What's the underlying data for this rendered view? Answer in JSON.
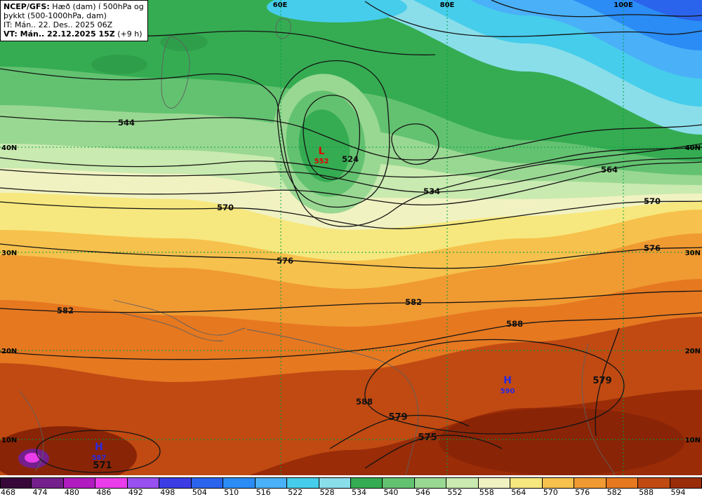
{
  "title_box": {
    "product_bold": "NCEP/GFS:",
    "product_rest": " Hæð (dam) í 500hPa og",
    "line2": "þykkt (500-1000hPa, dam)",
    "init_line": "IT: Mán.. 22. Des.. 2025 06Z",
    "valid_bold": "VT: Mán.. 22.12.2025 15Z",
    "valid_rest": " (+9 h)"
  },
  "axes": {
    "top": [
      "60E",
      "80E",
      "100E"
    ],
    "left": [
      "40N",
      "30N",
      "20N",
      "10N"
    ],
    "right": [
      "40N",
      "30N",
      "20N",
      "10N"
    ]
  },
  "map": {
    "contour_labels": {
      "c544": "544",
      "c524": "524",
      "c534": "534",
      "c564": "564",
      "c570a": "570",
      "c570b": "570",
      "c576a": "576",
      "c576b": "576",
      "c582a": "582",
      "c582b": "582",
      "c588a": "588",
      "c588b": "588",
      "c579a": "579",
      "c579b": "579",
      "c575": "575",
      "c571": "571"
    },
    "pressure_centers": {
      "low1": {
        "symbol": "L",
        "value": "552"
      },
      "high1": {
        "symbol": "H",
        "value": "590"
      },
      "high2": {
        "symbol": "H",
        "value": "587"
      }
    },
    "legend_colors": {
      "low_center": "#e00000",
      "high_center": "#2a2ae0",
      "grid": "#00a040"
    }
  },
  "colorbar": {
    "values": [
      "468",
      "474",
      "480",
      "486",
      "492",
      "498",
      "504",
      "510",
      "516",
      "522",
      "528",
      "534",
      "540",
      "546",
      "552",
      "558",
      "564",
      "570",
      "576",
      "582",
      "588",
      "594"
    ],
    "colors": [
      "#38083a",
      "#741f8c",
      "#b01cc0",
      "#ea3cea",
      "#9850f0",
      "#3c3ce4",
      "#2a64ec",
      "#2a8cf4",
      "#4ab0f8",
      "#46cdeb",
      "#8adeea",
      "#35ac52",
      "#63c270",
      "#99d892",
      "#c9eab0",
      "#f1f2c2",
      "#f6e87e",
      "#f6c14c",
      "#f09a32",
      "#e67820",
      "#c04a12",
      "#9a2c08"
    ]
  }
}
